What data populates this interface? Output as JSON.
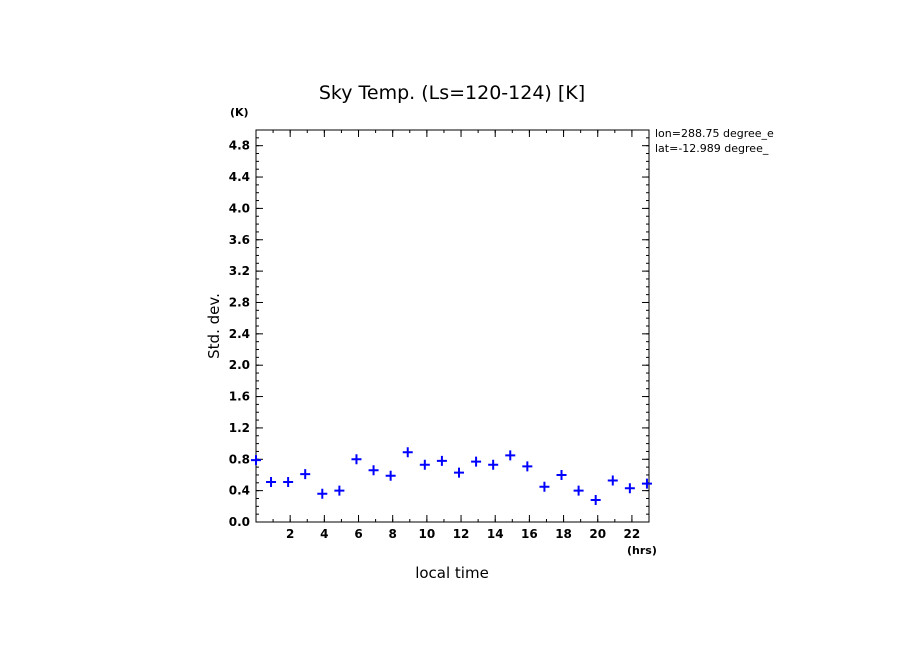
{
  "chart_data": {
    "type": "scatter",
    "title": "Sky Temp. (Ls=120-124) [K]",
    "xlabel": "local time",
    "ylabel": "Std. dev.",
    "x_unit": "(hrs)",
    "y_unit": "(K)",
    "xlim": [
      0,
      23
    ],
    "ylim": [
      0,
      5
    ],
    "x_ticks": [
      2,
      4,
      6,
      8,
      10,
      12,
      14,
      16,
      18,
      20,
      22
    ],
    "y_ticks": [
      0.0,
      0.4,
      0.8,
      1.2,
      1.6,
      2.0,
      2.4,
      2.8,
      3.2,
      3.6,
      4.0,
      4.4,
      4.8
    ],
    "y_tick_labels": [
      "0.0",
      "0.4",
      "0.8",
      "1.2",
      "1.6",
      "2.0",
      "2.4",
      "2.8",
      "3.2",
      "3.6",
      "4.0",
      "4.4",
      "4.8"
    ],
    "marker": "plus",
    "color": "#0000ff",
    "annotations": [
      "lon=288.75 degree_e",
      "lat=-12.989 degree_"
    ],
    "series": [
      {
        "name": "Std. dev.",
        "x": [
          0.0,
          0.88,
          1.88,
          2.88,
          3.88,
          4.88,
          5.88,
          6.88,
          7.88,
          8.88,
          9.88,
          10.88,
          11.88,
          12.88,
          13.88,
          14.88,
          15.88,
          16.88,
          17.88,
          18.88,
          19.88,
          20.88,
          21.88,
          22.88
        ],
        "values": [
          0.79,
          0.51,
          0.51,
          0.61,
          0.36,
          0.4,
          0.8,
          0.66,
          0.59,
          0.89,
          0.73,
          0.78,
          0.63,
          0.77,
          0.73,
          0.85,
          0.71,
          0.45,
          0.6,
          0.4,
          0.28,
          0.53,
          0.43,
          0.49
        ]
      }
    ]
  }
}
